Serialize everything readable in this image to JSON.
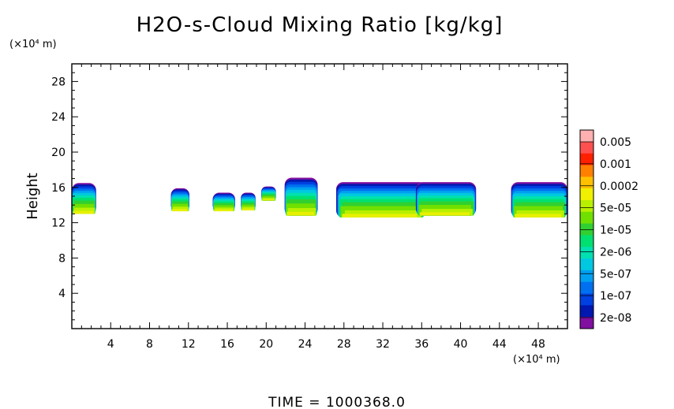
{
  "chart_data": {
    "type": "heatmap",
    "title": "H2O-s-Cloud Mixing Ratio [kg/kg]",
    "ylabel": "Height",
    "y_unit": "(×10⁴ m)",
    "x_unit": "(×10⁴ m)",
    "xlim": [
      0,
      51
    ],
    "ylim": [
      0,
      30
    ],
    "xticks": [
      4,
      8,
      12,
      16,
      20,
      24,
      28,
      32,
      36,
      40,
      44,
      48
    ],
    "yticks": [
      4,
      8,
      12,
      16,
      20,
      24,
      28
    ],
    "time_label": "TIME = 1000368.0",
    "colorbar": {
      "labels": [
        "0.005",
        "0.001",
        "0.0002",
        "5e-05",
        "1e-05",
        "2e-06",
        "5e-07",
        "1e-07",
        "2e-08"
      ],
      "colors": [
        "#ffb0b0",
        "#ff5050",
        "#ff2000",
        "#ff8000",
        "#ffc000",
        "#f0f000",
        "#b8f000",
        "#70e000",
        "#30d030",
        "#00e070",
        "#00e0b0",
        "#00c8e0",
        "#00a0f0",
        "#0070f0",
        "#0040e0",
        "#0018b0",
        "#8010a0"
      ]
    },
    "cloud_regions": [
      {
        "x_start": 0,
        "x_end": 2.5,
        "z_top": 16.5,
        "z_bottom": 13.0
      },
      {
        "x_start": 10.2,
        "x_end": 12.1,
        "z_top": 15.9,
        "z_bottom": 13.3
      },
      {
        "x_start": 14.5,
        "x_end": 16.8,
        "z_top": 15.4,
        "z_bottom": 13.3
      },
      {
        "x_start": 17.4,
        "x_end": 18.9,
        "z_top": 15.4,
        "z_bottom": 13.4
      },
      {
        "x_start": 19.5,
        "x_end": 21.0,
        "z_top": 16.1,
        "z_bottom": 14.5
      },
      {
        "x_start": 21.9,
        "x_end": 25.3,
        "z_top": 17.1,
        "z_bottom": 12.8
      },
      {
        "x_start": 27.2,
        "x_end": 36.5,
        "z_top": 16.6,
        "z_bottom": 12.6
      },
      {
        "x_start": 35.4,
        "x_end": 41.6,
        "z_top": 16.6,
        "z_bottom": 12.8
      },
      {
        "x_start": 45.2,
        "x_end": 51.0,
        "z_top": 16.6,
        "z_bottom": 12.6
      }
    ]
  }
}
